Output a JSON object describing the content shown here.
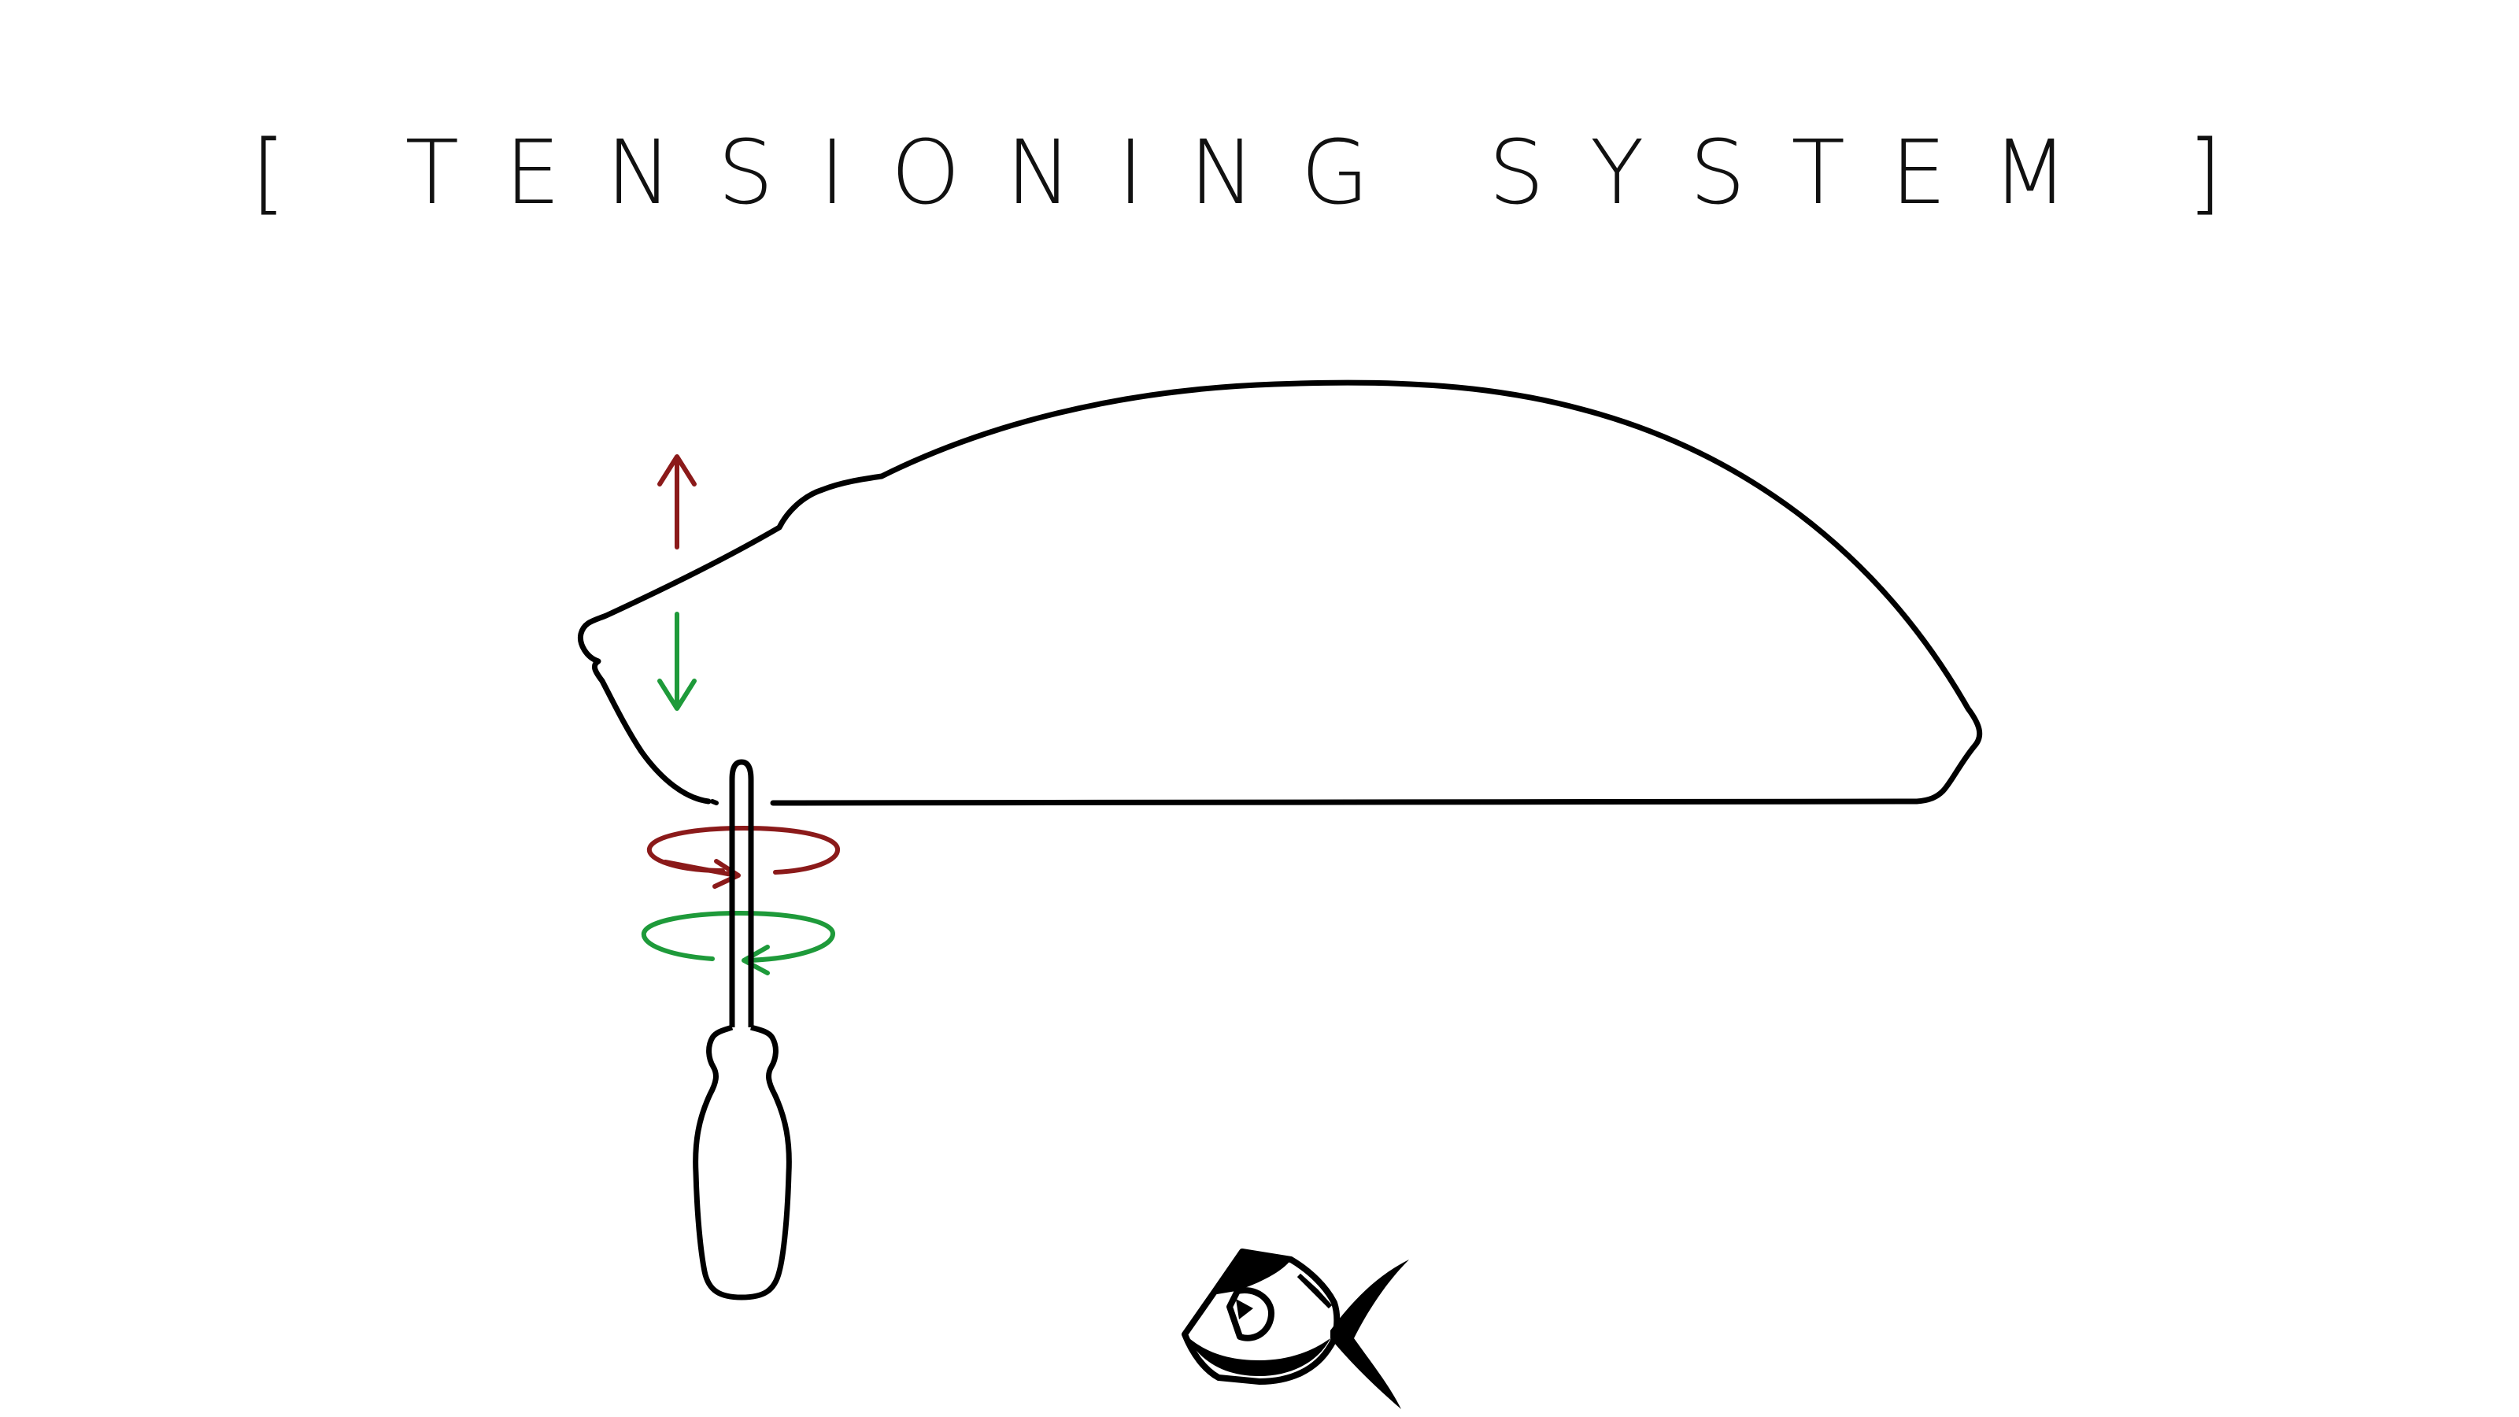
{
  "title": {
    "open_bracket": "[",
    "text": "TENSIONING SYSTEM",
    "close_bracket": "]"
  },
  "colors": {
    "outline": "#000000",
    "up_arrow": "#8b1a1a",
    "down_arrow": "#1e9a3a",
    "loosen_rotation": "#8b1a1a",
    "tighten_rotation": "#1e9a3a"
  },
  "icons": [
    "mouse-shell-outline",
    "arrow-up-icon",
    "arrow-down-icon",
    "rotation-arrow-red-icon",
    "rotation-arrow-green-icon",
    "screwdriver-icon",
    "fish-logo-icon"
  ]
}
